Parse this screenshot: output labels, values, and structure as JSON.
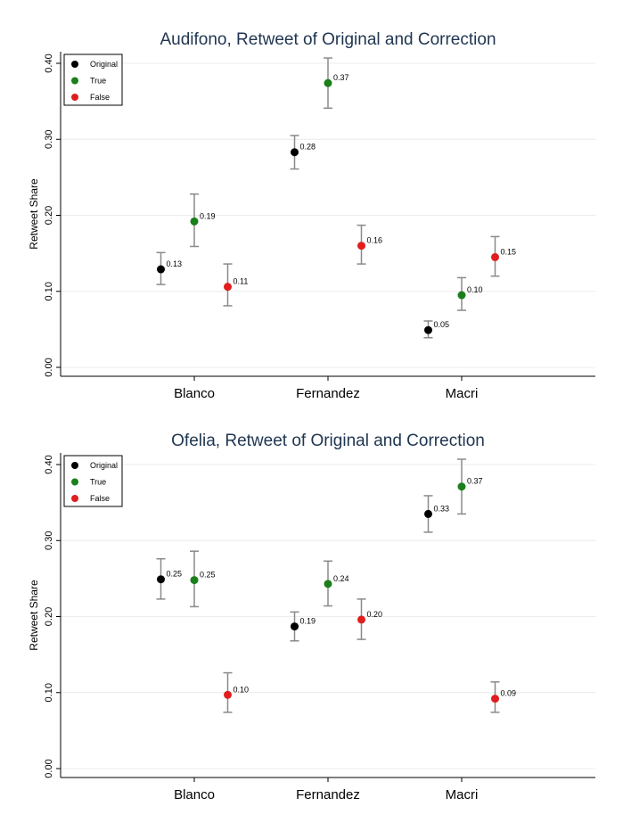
{
  "chart_data": [
    {
      "type": "scatter",
      "title": "Audifono, Retweet of Original and Correction",
      "ylabel": "Retweet Share",
      "xlabel": "",
      "categories": [
        "Blanco",
        "Fernandez",
        "Macri"
      ],
      "ylim": [
        -0.012,
        0.415
      ],
      "yticks": [
        "0.00",
        "0.10",
        "0.20",
        "0.30",
        "0.40"
      ],
      "grid": true,
      "legend": "top-left",
      "series": [
        {
          "name": "Original",
          "color": "#000000",
          "values": [
            0.129,
            0.283,
            0.049
          ],
          "ci_low": [
            0.109,
            0.261,
            0.039
          ],
          "ci_high": [
            0.151,
            0.305,
            0.061
          ],
          "labels": [
            "0.13",
            "0.28",
            "0.05"
          ]
        },
        {
          "name": "True",
          "color": "#1b7f1b",
          "values": [
            0.192,
            0.374,
            0.095
          ],
          "ci_low": [
            0.159,
            0.341,
            0.075
          ],
          "ci_high": [
            0.228,
            0.407,
            0.118
          ],
          "labels": [
            "0.19",
            "0.37",
            "0.10"
          ]
        },
        {
          "name": "False",
          "color": "#e01e1e",
          "values": [
            0.106,
            0.16,
            0.145
          ],
          "ci_low": [
            0.081,
            0.136,
            0.12
          ],
          "ci_high": [
            0.136,
            0.187,
            0.172
          ],
          "labels": [
            "0.11",
            "0.16",
            "0.15"
          ]
        }
      ]
    },
    {
      "type": "scatter",
      "title": "Ofelia, Retweet of Original and Correction",
      "ylabel": "Retweet Share",
      "xlabel": "",
      "categories": [
        "Blanco",
        "Fernandez",
        "Macri"
      ],
      "ylim": [
        -0.012,
        0.415
      ],
      "yticks": [
        "0.00",
        "0.10",
        "0.20",
        "0.30",
        "0.40"
      ],
      "grid": true,
      "legend": "top-left",
      "series": [
        {
          "name": "Original",
          "color": "#000000",
          "values": [
            0.249,
            0.187,
            0.335
          ],
          "ci_low": [
            0.223,
            0.168,
            0.311
          ],
          "ci_high": [
            0.276,
            0.206,
            0.359
          ],
          "labels": [
            "0.25",
            "0.19",
            "0.33"
          ]
        },
        {
          "name": "True",
          "color": "#1b7f1b",
          "values": [
            0.248,
            0.243,
            0.371
          ],
          "ci_low": [
            0.213,
            0.214,
            0.335
          ],
          "ci_high": [
            0.286,
            0.273,
            0.407
          ],
          "labels": [
            "0.25",
            "0.24",
            "0.37"
          ]
        },
        {
          "name": "False",
          "color": "#e01e1e",
          "values": [
            0.097,
            0.196,
            0.092
          ],
          "ci_low": [
            0.074,
            0.17,
            0.074
          ],
          "ci_high": [
            0.126,
            0.223,
            0.114
          ],
          "labels": [
            "0.10",
            "0.20",
            "0.09"
          ]
        }
      ]
    }
  ]
}
